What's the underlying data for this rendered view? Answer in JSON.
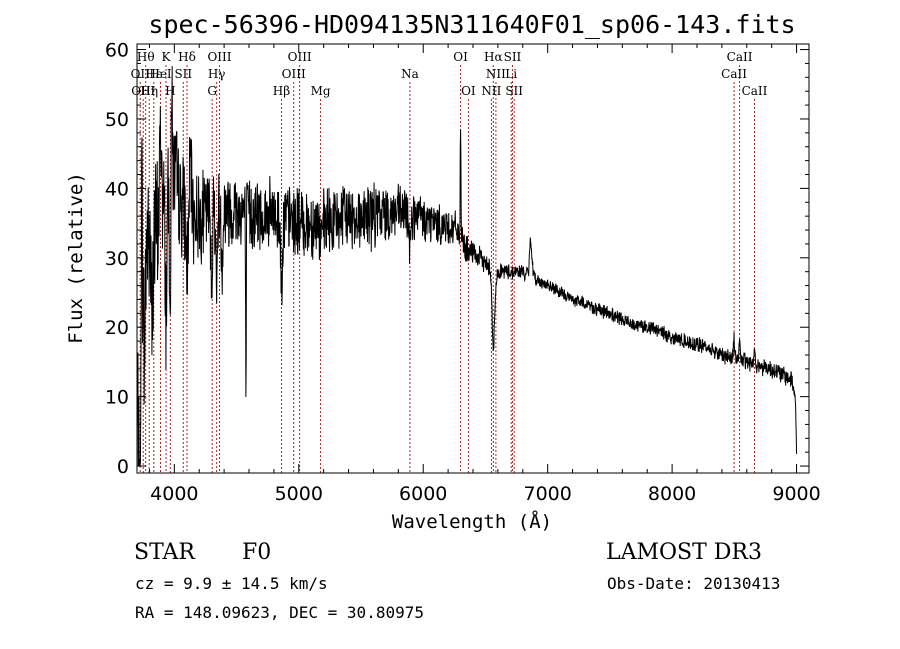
{
  "chart_data": {
    "type": "line",
    "title": "spec-56396-HD094135N311640F01_sp06-143.fits",
    "xlabel": "Wavelength (Å)",
    "ylabel": "Flux (relative)",
    "xlim": [
      3700,
      9100
    ],
    "ylim": [
      -1,
      60.8
    ],
    "xticks": [
      4000,
      5000,
      6000,
      7000,
      8000,
      9000
    ],
    "yticks": [
      0,
      10,
      20,
      30,
      40,
      50,
      60
    ],
    "grid": false,
    "line_color": "#000000",
    "marker_color": "#b22222",
    "continuum": [
      [
        3710,
        5
      ],
      [
        3740,
        26
      ],
      [
        3780,
        33
      ],
      [
        3820,
        31
      ],
      [
        3860,
        34
      ],
      [
        3900,
        36
      ],
      [
        3950,
        40
      ],
      [
        4000,
        42
      ],
      [
        4050,
        38
      ],
      [
        4100,
        37
      ],
      [
        4150,
        36
      ],
      [
        4200,
        36
      ],
      [
        4300,
        37
      ],
      [
        4400,
        37
      ],
      [
        4500,
        37
      ],
      [
        4600,
        36.5
      ],
      [
        4700,
        36
      ],
      [
        4800,
        36
      ],
      [
        4900,
        35.5
      ],
      [
        5000,
        35
      ],
      [
        5100,
        35
      ],
      [
        5200,
        35
      ],
      [
        5300,
        35.5
      ],
      [
        5400,
        36
      ],
      [
        5500,
        36
      ],
      [
        5600,
        36
      ],
      [
        5700,
        36.5
      ],
      [
        5800,
        36.5
      ],
      [
        5900,
        36
      ],
      [
        6000,
        35.5
      ],
      [
        6100,
        35
      ],
      [
        6200,
        34.5
      ],
      [
        6280,
        34
      ],
      [
        6350,
        31
      ],
      [
        6450,
        30
      ],
      [
        6550,
        28.5
      ],
      [
        6650,
        28
      ],
      [
        6800,
        28
      ],
      [
        6900,
        27
      ],
      [
        7000,
        26
      ],
      [
        7100,
        25
      ],
      [
        7200,
        24
      ],
      [
        7300,
        23.5
      ],
      [
        7400,
        22.5
      ],
      [
        7500,
        22
      ],
      [
        7600,
        21
      ],
      [
        7700,
        20.5
      ],
      [
        7800,
        20
      ],
      [
        7900,
        19.5
      ],
      [
        8000,
        18.5
      ],
      [
        8100,
        18
      ],
      [
        8200,
        17.5
      ],
      [
        8300,
        17
      ],
      [
        8400,
        16
      ],
      [
        8500,
        15.5
      ],
      [
        8600,
        15
      ],
      [
        8700,
        14.5
      ],
      [
        8800,
        14
      ],
      [
        8900,
        13
      ],
      [
        8960,
        12.5
      ],
      [
        8990,
        10
      ],
      [
        9000,
        2
      ]
    ],
    "noise": [
      [
        3700,
        12
      ],
      [
        4100,
        6
      ],
      [
        4400,
        5
      ],
      [
        5000,
        4.5
      ],
      [
        5600,
        4
      ],
      [
        6000,
        3
      ],
      [
        6300,
        2
      ],
      [
        6500,
        1.2
      ],
      [
        7000,
        0.8
      ],
      [
        8000,
        0.9
      ],
      [
        9000,
        1.2
      ]
    ],
    "features": [
      [
        3725,
        -28,
        6
      ],
      [
        3735,
        20,
        5
      ],
      [
        3760,
        -15,
        5
      ],
      [
        3820,
        -12,
        5
      ],
      [
        3890,
        12,
        8
      ],
      [
        3933,
        -16,
        6
      ],
      [
        3968,
        -15,
        6
      ],
      [
        3980,
        15,
        5
      ],
      [
        4101,
        -8,
        8
      ],
      [
        4130,
        8,
        6
      ],
      [
        4300,
        -10,
        6
      ],
      [
        4340,
        -13,
        5
      ],
      [
        4383,
        -8,
        6
      ],
      [
        4575,
        -24,
        3
      ],
      [
        4861,
        -10,
        6
      ],
      [
        5180,
        -3,
        10
      ],
      [
        5890,
        -3,
        8
      ],
      [
        6300,
        17,
        2.5
      ],
      [
        6563,
        -8,
        8
      ],
      [
        6570,
        -4,
        15
      ],
      [
        6860,
        4,
        6
      ],
      [
        6870,
        3,
        8
      ],
      [
        8498,
        3,
        5
      ],
      [
        8542,
        3,
        5
      ],
      [
        8662,
        2,
        5
      ]
    ],
    "line_markers": [
      {
        "x": 3726,
        "label": "OII",
        "row": 2
      },
      {
        "x": 3750,
        "label": "OIII",
        "row": 3
      },
      {
        "x": 3770,
        "label": "Hθ",
        "row": 1
      },
      {
        "x": 3798,
        "label": "Hη",
        "row": 3
      },
      {
        "x": 3835,
        "label": "Hε",
        "row": 2
      },
      {
        "x": 3889,
        "label": "HeI",
        "row": 2
      },
      {
        "x": 3933,
        "label": "K",
        "row": 1
      },
      {
        "x": 3968,
        "label": "H",
        "row": 3
      },
      {
        "x": 4072,
        "label": "SII",
        "row": 2
      },
      {
        "x": 4102,
        "label": "Hδ",
        "row": 1
      },
      {
        "x": 4304,
        "label": "G",
        "row": 3
      },
      {
        "x": 4340,
        "label": "Hγ",
        "row": 2
      },
      {
        "x": 4363,
        "label": "OIII",
        "row": 1
      },
      {
        "x": 4861,
        "label": "Hβ",
        "row": 3
      },
      {
        "x": 4959,
        "label": "OIII",
        "row": 2
      },
      {
        "x": 5007,
        "label": "OIII",
        "row": 1
      },
      {
        "x": 5175,
        "label": "Mg",
        "row": 3
      },
      {
        "x": 5893,
        "label": "Na",
        "row": 2
      },
      {
        "x": 6300,
        "label": "OI",
        "row": 1
      },
      {
        "x": 6363,
        "label": "OI",
        "row": 3
      },
      {
        "x": 6548,
        "label": "NII",
        "row": 3
      },
      {
        "x": 6563,
        "label": "Hα",
        "row": 1
      },
      {
        "x": 6584,
        "label": "NII",
        "row": 2
      },
      {
        "x": 6707,
        "label": "Li",
        "row": 2
      },
      {
        "x": 6717,
        "label": "SII",
        "row": 1
      },
      {
        "x": 6731,
        "label": "SII",
        "row": 3
      },
      {
        "x": 8498,
        "label": "CaII",
        "row": 2
      },
      {
        "x": 8542,
        "label": "CaII",
        "row": 1
      },
      {
        "x": 8662,
        "label": "CaII",
        "row": 3
      }
    ]
  },
  "info": {
    "object_class": "STAR",
    "subclass": "F0",
    "survey": "LAMOST DR3",
    "redshift": "cz = 9.9 ± 14.5 km/s",
    "obs_date": "Obs-Date: 20130413",
    "coords": "RA = 148.09623, DEC =  30.80975"
  }
}
